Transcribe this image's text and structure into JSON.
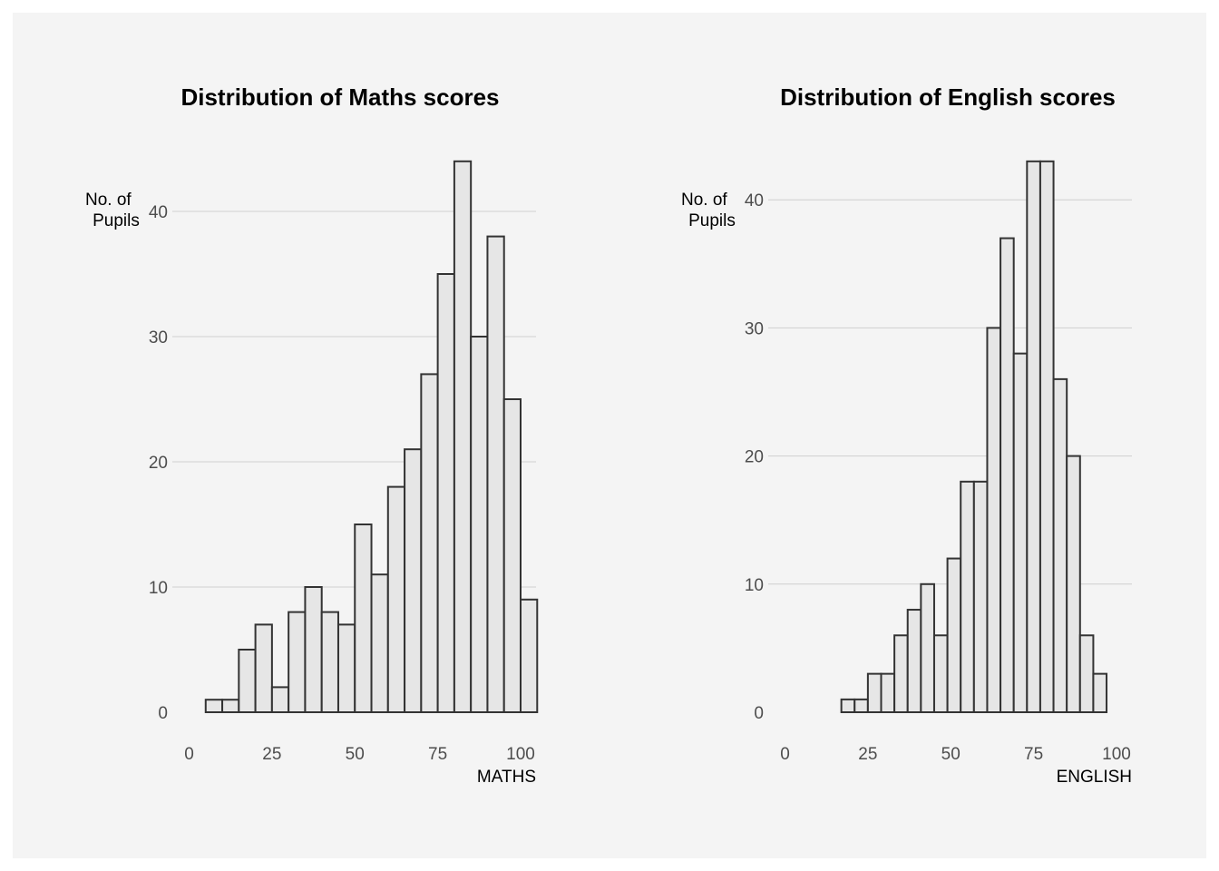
{
  "chart_data": [
    {
      "type": "bar",
      "title": "Distribution of Maths scores",
      "xlabel": "MATHS",
      "ylabel": "No. of\nPupils",
      "xlim": [
        0,
        100
      ],
      "ylim": [
        0,
        44
      ],
      "xticks": [
        0,
        25,
        50,
        75,
        100
      ],
      "yticks": [
        0,
        10,
        20,
        30,
        40
      ],
      "grid": true,
      "bin_width": 5,
      "bins": [
        {
          "x0": 5,
          "x1": 10,
          "count": 1
        },
        {
          "x0": 10,
          "x1": 15,
          "count": 1
        },
        {
          "x0": 15,
          "x1": 20,
          "count": 5
        },
        {
          "x0": 20,
          "x1": 25,
          "count": 7
        },
        {
          "x0": 25,
          "x1": 30,
          "count": 2
        },
        {
          "x0": 30,
          "x1": 35,
          "count": 8
        },
        {
          "x0": 35,
          "x1": 40,
          "count": 10
        },
        {
          "x0": 40,
          "x1": 45,
          "count": 8
        },
        {
          "x0": 45,
          "x1": 50,
          "count": 7
        },
        {
          "x0": 50,
          "x1": 55,
          "count": 15
        },
        {
          "x0": 55,
          "x1": 60,
          "count": 11
        },
        {
          "x0": 60,
          "x1": 65,
          "count": 18
        },
        {
          "x0": 65,
          "x1": 70,
          "count": 21
        },
        {
          "x0": 70,
          "x1": 75,
          "count": 27
        },
        {
          "x0": 75,
          "x1": 80,
          "count": 35
        },
        {
          "x0": 80,
          "x1": 85,
          "count": 44
        },
        {
          "x0": 85,
          "x1": 90,
          "count": 30
        },
        {
          "x0": 90,
          "x1": 95,
          "count": 38
        },
        {
          "x0": 95,
          "x1": 100,
          "count": 25
        },
        {
          "x0": 100,
          "x1": 105,
          "count": 9
        }
      ]
    },
    {
      "type": "bar",
      "title": "Distribution of English scores",
      "xlabel": "ENGLISH",
      "ylabel": "No. of\nPupils",
      "xlim": [
        0,
        100
      ],
      "ylim": [
        0,
        43
      ],
      "xticks": [
        0,
        25,
        50,
        75,
        100
      ],
      "yticks": [
        0,
        10,
        20,
        30,
        40
      ],
      "grid": true,
      "bin_width": 4,
      "bins": [
        {
          "x0": 17,
          "x1": 21,
          "count": 1
        },
        {
          "x0": 21,
          "x1": 25,
          "count": 1
        },
        {
          "x0": 25,
          "x1": 29,
          "count": 3
        },
        {
          "x0": 29,
          "x1": 33,
          "count": 3
        },
        {
          "x0": 33,
          "x1": 37,
          "count": 6
        },
        {
          "x0": 37,
          "x1": 41,
          "count": 8
        },
        {
          "x0": 41,
          "x1": 45,
          "count": 10
        },
        {
          "x0": 45,
          "x1": 49,
          "count": 6
        },
        {
          "x0": 49,
          "x1": 53,
          "count": 12
        },
        {
          "x0": 53,
          "x1": 57,
          "count": 18
        },
        {
          "x0": 57,
          "x1": 61,
          "count": 18
        },
        {
          "x0": 61,
          "x1": 65,
          "count": 30
        },
        {
          "x0": 65,
          "x1": 69,
          "count": 37
        },
        {
          "x0": 69,
          "x1": 73,
          "count": 28
        },
        {
          "x0": 73,
          "x1": 77,
          "count": 43
        },
        {
          "x0": 77,
          "x1": 81,
          "count": 43
        },
        {
          "x0": 81,
          "x1": 85,
          "count": 26
        },
        {
          "x0": 85,
          "x1": 89,
          "count": 20
        },
        {
          "x0": 89,
          "x1": 93,
          "count": 6
        },
        {
          "x0": 93,
          "x1": 97,
          "count": 3
        }
      ]
    }
  ]
}
